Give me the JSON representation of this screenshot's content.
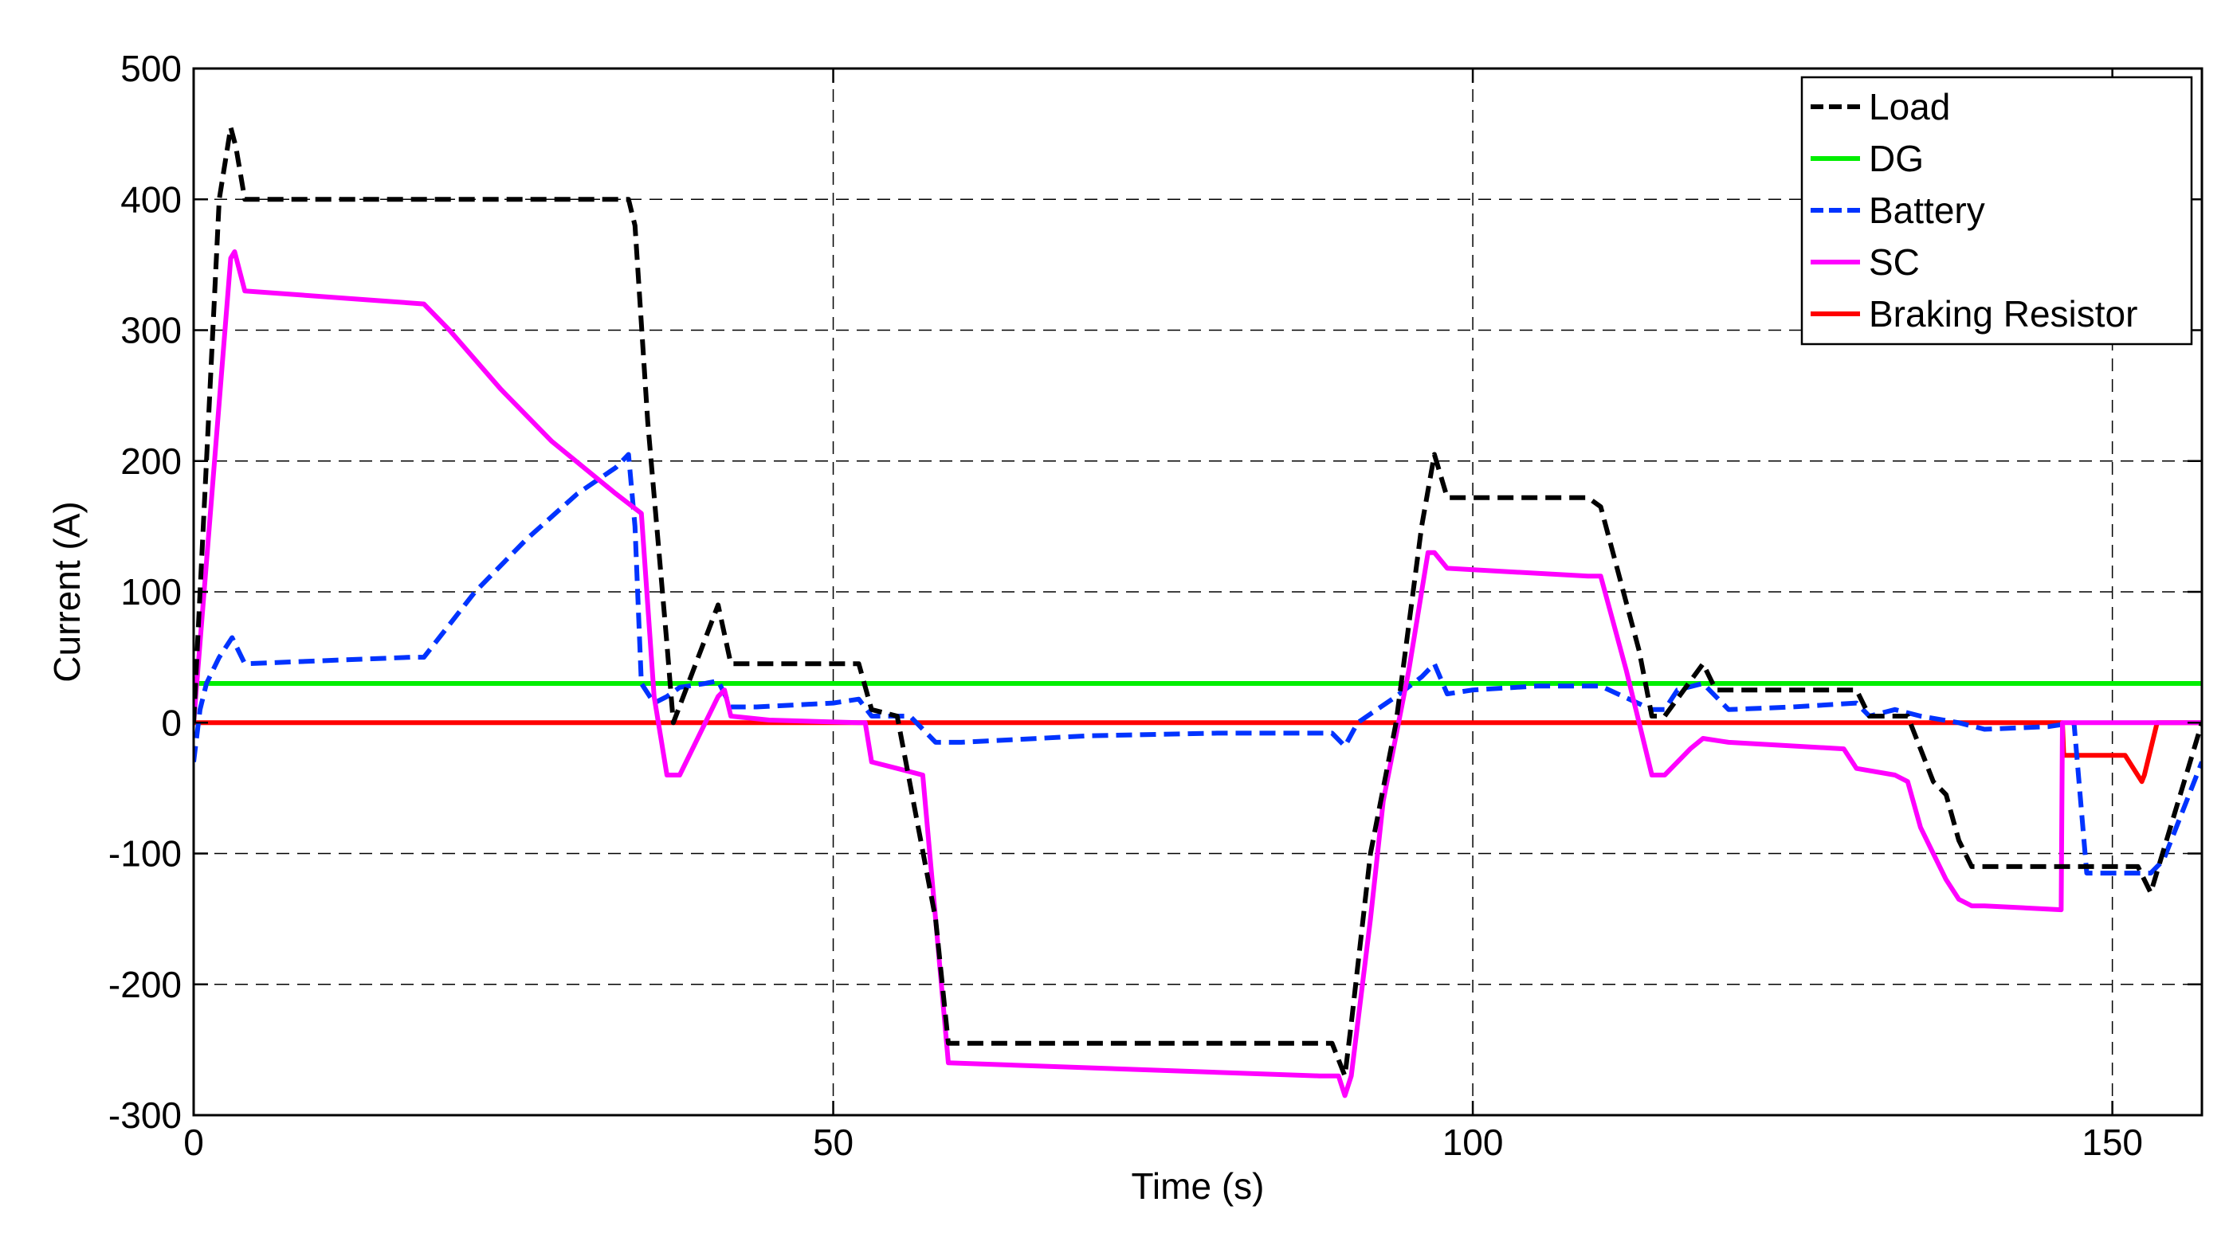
{
  "chart_data": {
    "type": "line",
    "title": "",
    "xlabel": "Time (s)",
    "ylabel": "Current (A)",
    "xlim": [
      0,
      157
    ],
    "ylim": [
      -300,
      500
    ],
    "xticks": [
      0,
      50,
      100,
      150
    ],
    "yticks": [
      -300,
      -200,
      -100,
      0,
      100,
      200,
      300,
      400,
      500
    ],
    "xtick_labels": [
      "0",
      "50",
      "100",
      "150"
    ],
    "ytick_labels": [
      "-300",
      "-200",
      "-100",
      "0",
      "100",
      "200",
      "300",
      "400",
      "500"
    ],
    "grid": true,
    "legend_position": "top-right",
    "series": [
      {
        "name": "Load",
        "color": "#000000",
        "dashed": true,
        "x": [
          0,
          1,
          2,
          2.9,
          3.3,
          4,
          34,
          34.5,
          35.5,
          37,
          37.5,
          41,
          42,
          52,
          53,
          55,
          58,
          59,
          89,
          90,
          90.5,
          92,
          94,
          96,
          97,
          98,
          109,
          110,
          113,
          114,
          115,
          118,
          119,
          130,
          131,
          134,
          135,
          136,
          137,
          138,
          139,
          140,
          148,
          152,
          153,
          157
        ],
        "y": [
          0,
          200,
          400,
          455,
          440,
          400,
          400,
          380,
          230,
          60,
          0,
          90,
          45,
          45,
          10,
          5,
          -150,
          -245,
          -245,
          -270,
          -230,
          -100,
          0,
          150,
          205,
          172,
          172,
          165,
          55,
          5,
          5,
          45,
          25,
          25,
          5,
          5,
          -20,
          -45,
          -55,
          -90,
          -110,
          -110,
          -110,
          -110,
          -130,
          0
        ]
      },
      {
        "name": "DG",
        "color": "#00ee00",
        "dashed": false,
        "x": [
          0,
          157
        ],
        "y": [
          30,
          30
        ]
      },
      {
        "name": "Battery",
        "color": "#0033ff",
        "dashed": true,
        "x": [
          0,
          0.5,
          1,
          2,
          3,
          4,
          17,
          18,
          22,
          26,
          30,
          33,
          34,
          34.5,
          35,
          36,
          37,
          38,
          40,
          41,
          42,
          44,
          50,
          52,
          53,
          56,
          58,
          60,
          70,
          80,
          89,
          90,
          91,
          94,
          96,
          97,
          98,
          100,
          105,
          110,
          114,
          115,
          116,
          118,
          120,
          125,
          130,
          131,
          133,
          135,
          138,
          140,
          145,
          147,
          148,
          152.5,
          153,
          154,
          157
        ],
        "y": [
          -30,
          10,
          30,
          50,
          65,
          45,
          50,
          50,
          100,
          140,
          175,
          195,
          205,
          150,
          30,
          15,
          20,
          27,
          30,
          32,
          12,
          12,
          15,
          18,
          5,
          5,
          -15,
          -15,
          -10,
          -8,
          -8,
          -18,
          0,
          20,
          35,
          45,
          22,
          25,
          28,
          28,
          10,
          10,
          25,
          30,
          10,
          12,
          15,
          5,
          10,
          5,
          0,
          -5,
          -3,
          0,
          -115,
          -115,
          -115,
          -105,
          -30
        ]
      },
      {
        "name": "SC",
        "color": "#ff00ff",
        "dashed": false,
        "x": [
          0,
          2.9,
          3.2,
          4,
          18,
          20,
          24,
          28,
          33,
          35,
          36,
          37,
          38,
          41,
          41.5,
          42,
          45,
          52,
          52.5,
          53,
          55,
          57,
          58,
          59,
          88,
          89.5,
          90,
          90.5,
          92,
          93,
          95,
          96.5,
          97,
          98,
          109,
          110,
          112,
          113,
          114,
          115,
          117,
          118,
          120,
          129,
          130,
          133,
          134,
          135,
          136,
          137,
          138,
          139,
          140,
          146,
          146.1,
          147,
          157
        ],
        "y": [
          0,
          355,
          360,
          330,
          320,
          300,
          255,
          215,
          175,
          160,
          20,
          -40,
          -40,
          20,
          25,
          5,
          2,
          0,
          0,
          -30,
          -35,
          -40,
          -150,
          -260,
          -270,
          -270,
          -285,
          -270,
          -150,
          -60,
          40,
          130,
          130,
          118,
          112,
          112,
          40,
          0,
          -40,
          -40,
          -20,
          -12,
          -15,
          -20,
          -35,
          -40,
          -45,
          -80,
          -100,
          -120,
          -135,
          -140,
          -140,
          -143,
          0,
          0,
          0
        ]
      },
      {
        "name": "Braking Resistor",
        "color": "#ff0000",
        "dashed": false,
        "x": [
          0,
          146.1,
          146.2,
          147,
          151,
          152.3,
          152.5,
          153.5,
          157
        ],
        "y": [
          0,
          0,
          -25,
          -25,
          -25,
          -45,
          -40,
          0,
          0
        ]
      }
    ]
  }
}
